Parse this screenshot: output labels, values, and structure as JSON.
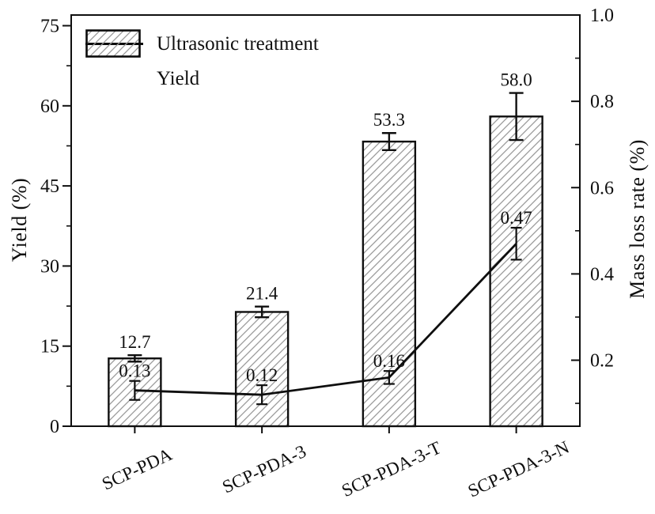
{
  "chart_data": {
    "type": "bar+line",
    "categories": [
      "SCP-PDA",
      "SCP-PDA-3",
      "SCP-PDA-3-T",
      "SCP-PDA-3-N"
    ],
    "series": [
      {
        "name": "Yield",
        "type": "bar",
        "axis": "left",
        "values": [
          12.7,
          21.4,
          53.3,
          58.0
        ],
        "errors": [
          0.6,
          1.0,
          1.6,
          4.4
        ],
        "value_labels": [
          "12.7",
          "21.4",
          "53.3",
          "58.0"
        ]
      },
      {
        "name": "Ultrasonic treatment",
        "type": "line",
        "axis": "right",
        "values": [
          0.13,
          0.12,
          0.16,
          0.47
        ],
        "errors": [
          0.022,
          0.022,
          0.015,
          0.037
        ],
        "value_labels": [
          "0.13",
          "0.12",
          "0.16",
          "0.47"
        ]
      }
    ],
    "left_axis": {
      "title": "Yield (%)",
      "tick_values": [
        0,
        15,
        30,
        45,
        60,
        75
      ],
      "tick_labels": [
        "0",
        "15",
        "30",
        "45",
        "60",
        "75"
      ],
      "minor_tick_values": [
        7.5,
        22.5,
        37.5,
        52.5,
        67.5
      ],
      "min": 0,
      "max": 77.0
    },
    "right_axis": {
      "title": "Mass loss rate (%)",
      "tick_values": [
        0.2,
        0.4,
        0.6,
        0.8,
        1.0
      ],
      "tick_labels": [
        "0.2",
        "0.4",
        "0.6",
        "0.8",
        "1.0"
      ],
      "minor_tick_values": [
        0.1,
        0.3,
        0.5,
        0.7,
        0.9
      ],
      "min": 0.047,
      "max": 1.0
    },
    "x_axis": {
      "label_rotation_deg": -25
    },
    "grid": false,
    "legend_position": "top-left-inside",
    "styles": {
      "ink": "#0f0f0f",
      "bar_fill": "#ffffff",
      "hatch_color": "#9a9a9a",
      "background": "#ffffff"
    }
  },
  "legend": {
    "entries": [
      {
        "swatch": "line",
        "label": "Ultrasonic treatment"
      },
      {
        "swatch": "hatch-box",
        "label": "Yield"
      }
    ]
  }
}
